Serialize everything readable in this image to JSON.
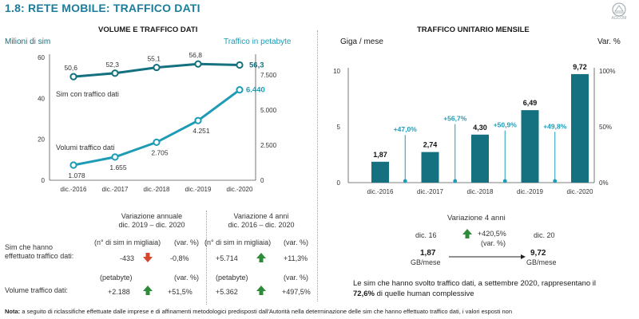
{
  "page": {
    "title": "1.8: RETE MOBILE: TRAFFICO DATI",
    "logo_text": "AGCOM",
    "note_label": "Nota:",
    "note_text": "a seguito di riclassifiche effettuate dalle imprese e di affinamenti metodologici predisposti dall'Autorità nella determinazione delle sim che hanno effettuato traffico dati, i valori esposti non"
  },
  "colors": {
    "title": "#1b7d9a",
    "sim_line": "#15707f",
    "traffic_line": "#1e9cb6",
    "bars": "#15707f",
    "pct_markers": "#1e9cb6",
    "up_arrow": "#2e8b3a",
    "down_arrow": "#d9442c"
  },
  "left": {
    "title": "VOLUME E TRAFFICO DATI",
    "left_axis_label": "Milioni di sim",
    "right_axis_label": "Traffico in petabyte",
    "series_sim_label": "Sim con traffico dati",
    "series_traffic_label": "Volumi traffico dati",
    "header_annual_1": "Variazione annuale",
    "header_annual_2": "dic. 2019 – dic. 2020",
    "header_4y_1": "Variazione 4 anni",
    "header_4y_2": "dic. 2016 – dic. 2020",
    "row1_label_1": "Sim che hanno",
    "row1_label_2": "effettuato traffico dati:",
    "row1_unit_a": "(n° di  sim in migliaia)",
    "row1_unit_b": "(var. %)",
    "row1_annual_abs": "-433",
    "row1_annual_pct": "-0,8%",
    "row1_4y_abs": "+5.714",
    "row1_4y_pct": "+11,3%",
    "row2_label": "Volume traffico dati:",
    "row2_unit_a": "(petabyte)",
    "row2_unit_b": "(var. %)",
    "row2_annual_abs": "+2.188",
    "row2_annual_pct": "+51,5%",
    "row2_4y_abs": "+5.362",
    "row2_4y_pct": "+497,5%"
  },
  "right": {
    "title": "TRAFFICO UNITARIO MENSILE",
    "left_axis_label": "Giga / mese",
    "right_axis_label": "Var. %",
    "var_title": "Variazione 4 anni",
    "from_label": "dic. 16",
    "to_label": "dic. 20",
    "change_pct": "+420,5%",
    "change_unit": "(var. %)",
    "from_value": "1,87",
    "to_value": "9,72",
    "value_unit": "GB/mese",
    "caption_1": "Le sim che hanno svolto traffico dati, a settembre 2020, rappresentano il",
    "caption_2_bold": "72,6%",
    "caption_2_rest": " di quelle human complessive"
  },
  "chart_data": [
    {
      "type": "line",
      "title": "VOLUME E TRAFFICO DATI",
      "categories": [
        "dic.-2016",
        "dic.-2017",
        "dic.-2018",
        "dic.-2019",
        "dic.-2020"
      ],
      "left_ylim": [
        0,
        60
      ],
      "left_yticks": [
        0,
        20,
        40,
        60
      ],
      "right_ylim": [
        0,
        8750
      ],
      "right_yticks": [
        0,
        2500,
        5000,
        7500
      ],
      "right_ytick_labels": [
        "0",
        "2.500",
        "5.000",
        "7.500"
      ],
      "series": [
        {
          "name": "Sim con traffico dati",
          "axis": "left",
          "values": [
            50.6,
            52.3,
            55.1,
            56.8,
            56.3
          ],
          "labels": [
            "50,6",
            "52,3",
            "55,1",
            "56,8",
            "56,3"
          ]
        },
        {
          "name": "Volumi traffico dati",
          "axis": "right",
          "values": [
            1078,
            1655,
            2705,
            4251,
            6440
          ],
          "labels": [
            "1.078",
            "1.655",
            "2.705",
            "4.251",
            "6.440"
          ]
        }
      ]
    },
    {
      "type": "bar",
      "title": "TRAFFICO UNITARIO MENSILE",
      "categories": [
        "dic.-2016",
        "dic.-2017",
        "dic.-2018",
        "dic.-2019",
        "dic.-2020"
      ],
      "values": [
        1.87,
        2.74,
        4.3,
        6.49,
        9.72
      ],
      "value_labels": [
        "1,87",
        "2,74",
        "4,30",
        "6,49",
        "9,72"
      ],
      "ylim": [
        0,
        10
      ],
      "yticks": [
        0,
        5,
        10
      ],
      "right_ylim": [
        0,
        100
      ],
      "right_yticks": [
        0,
        50,
        100
      ],
      "right_ytick_labels": [
        "0%",
        "50%",
        "100%"
      ],
      "pct_changes": [
        47.0,
        56.7,
        50.9,
        49.8
      ],
      "pct_labels": [
        "+47,0%",
        "+56,7%",
        "+50,9%",
        "+49,8%"
      ]
    }
  ]
}
